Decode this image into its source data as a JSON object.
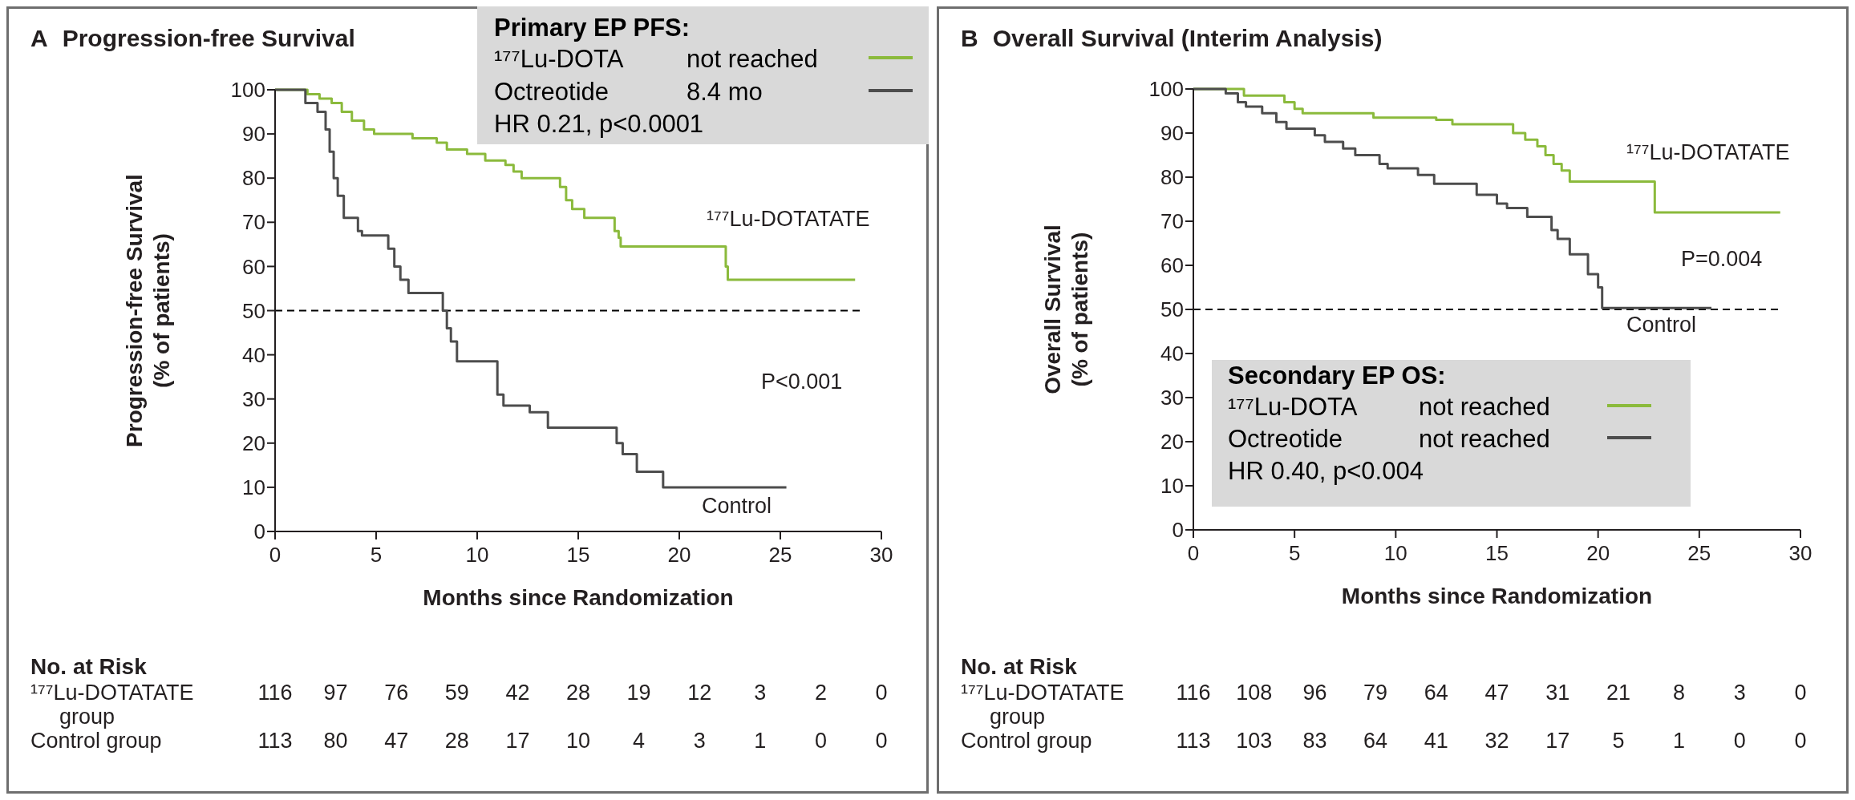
{
  "chart_data": [
    {
      "type": "step",
      "title": "A Progression-free Survival",
      "xlabel": "Months since Randomization",
      "ylabel": "Progression-free Survival\n(% of patients)",
      "xlim": [
        0,
        30
      ],
      "xticks": [
        0,
        5,
        10,
        15,
        20,
        25,
        30
      ],
      "ylim": [
        0,
        100
      ],
      "yticks": [
        0,
        10,
        20,
        30,
        40,
        50,
        60,
        70,
        80,
        90,
        100
      ],
      "series": [
        {
          "name": "¹⁷⁷Lu-DOTATATE",
          "color": "#8bba3c",
          "x": [
            0,
            1.6,
            2.2,
            2.8,
            3.3,
            3.8,
            4.4,
            4.9,
            6.8,
            8.0,
            8.5,
            9.5,
            10.4,
            11.4,
            11.8,
            12.2,
            14.1,
            14.4,
            14.7,
            15.3,
            16.8,
            17.0,
            17.1,
            22.3,
            22.4,
            28.7
          ],
          "values": [
            100,
            99,
            98,
            97,
            95,
            93,
            91,
            90,
            89,
            88,
            86.5,
            85.5,
            84,
            83,
            81.5,
            80,
            78,
            75,
            73,
            71,
            68,
            66.5,
            64.5,
            60,
            57,
            57
          ]
        },
        {
          "name": "Control",
          "color": "#4d4d4d",
          "x": [
            0,
            1.5,
            2.1,
            2.5,
            2.7,
            2.9,
            3.1,
            3.4,
            4.1,
            4.3,
            5.6,
            5.9,
            6.2,
            6.6,
            8.3,
            8.5,
            8.7,
            9.0,
            11.0,
            11.3,
            12.6,
            13.5,
            16.9,
            17.2,
            17.9,
            19.2,
            25.3
          ],
          "values": [
            100,
            97,
            95,
            91,
            86,
            80,
            76,
            71,
            68,
            67,
            64,
            60,
            57,
            54,
            50,
            46,
            43,
            38.5,
            31,
            28.5,
            27,
            23.5,
            20,
            17.5,
            13.5,
            10,
            10
          ]
        }
      ],
      "ref_lines": [
        {
          "axis": "y",
          "value": 50,
          "color": "#000000",
          "line_style": "dashed"
        }
      ],
      "annotations": [
        "Primary EP PFS:",
        "¹⁷⁷Lu-DOTA",
        "not reached",
        "Octreotide",
        "8.4 mo",
        "HR 0.21, p<0.0001",
        "P<0.001",
        "No. at Risk",
        "¹⁷⁷Lu-DOTATATE\ngroup",
        "116 97 76 59 42 28 19 12 3 2 0",
        "Control group",
        "113 80 47 28 17 10 4 3 1 0 0"
      ]
    },
    {
      "type": "step",
      "title": "B Overall Survival (Interim Analysis)",
      "xlabel": "Months since Randomization",
      "ylabel": "Overall Survival\n(% of patients)",
      "xlim": [
        0,
        30
      ],
      "xticks": [
        0,
        5,
        10,
        15,
        20,
        25,
        30
      ],
      "ylim": [
        0,
        100
      ],
      "yticks": [
        0,
        10,
        20,
        30,
        40,
        50,
        60,
        70,
        80,
        90,
        100
      ],
      "series": [
        {
          "name": "¹⁷⁷Lu-DOTATATE",
          "color": "#8bba3c",
          "x": [
            0,
            2.5,
            4.5,
            5.0,
            5.4,
            8.9,
            12.0,
            12.8,
            15.8,
            16.4,
            17.0,
            17.4,
            17.8,
            18.2,
            18.6,
            22.8,
            29.0
          ],
          "values": [
            100,
            98.5,
            97,
            95.5,
            94.5,
            93.5,
            93,
            92,
            90,
            88.5,
            87,
            85,
            83,
            81.5,
            79,
            72,
            72
          ]
        },
        {
          "name": "Control",
          "color": "#4d4d4d",
          "x": [
            0,
            1.6,
            2.2,
            2.6,
            3.4,
            4.1,
            4.6,
            6.0,
            6.5,
            7.4,
            8.0,
            9.2,
            9.6,
            11.1,
            11.9,
            14.0,
            15.0,
            15.5,
            16.5,
            17.7,
            18.0,
            18.6,
            19.5,
            20.0,
            20.2,
            25.6
          ],
          "values": [
            100,
            99,
            97,
            96,
            94.5,
            92.5,
            91,
            89.5,
            88,
            86.5,
            85,
            83,
            82,
            80.5,
            78.5,
            76,
            74,
            73,
            71,
            68,
            66,
            62.5,
            58,
            55,
            50.3,
            50.3
          ]
        }
      ],
      "ref_lines": [
        {
          "axis": "y",
          "value": 50,
          "color": "#000000",
          "line_style": "dashed"
        }
      ],
      "annotations": [
        "Secondary EP OS:",
        "¹⁷⁷Lu-DOTA",
        "not reached",
        "Octreotide",
        "not reached",
        "HR 0.40, p<0.004",
        "P=0.004",
        "No. at Risk",
        "¹⁷⁷Lu-DOTATATE\ngroup",
        "116 108 96 79 64 47 31 21 8 3 0",
        "Control group",
        "113 103 83 64 41 32 17 5 1 0 0"
      ]
    }
  ]
}
